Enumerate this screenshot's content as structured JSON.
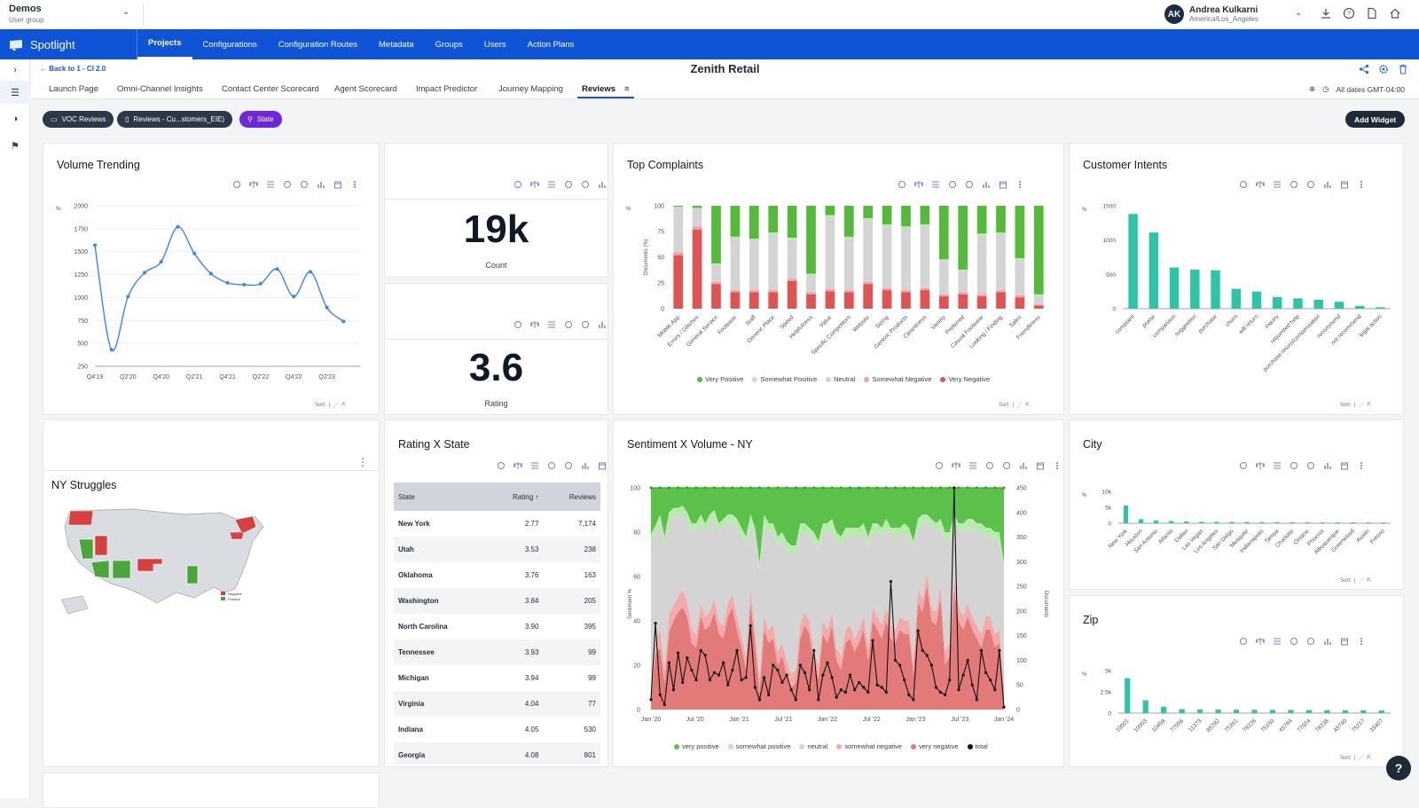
{
  "workspace": {
    "name": "Demos",
    "subtitle": "User group"
  },
  "user": {
    "initials": "AK",
    "name": "Andrea Kulkarni",
    "timezone": "America/Los_Angeles"
  },
  "brand": {
    "name": "Spotlight"
  },
  "nav": [
    "Projects",
    "Configurations",
    "Configuration Routes",
    "Metadata",
    "Groups",
    "Users",
    "Action Plans"
  ],
  "page": {
    "back": "Back to 1 - CI 2.0",
    "title": "Zenith Retail"
  },
  "tabs": [
    "Launch Page",
    "Omni-Channel Insights",
    "Contact Center Scorecard",
    "Agent Scorecard",
    "Impact Predictor",
    "Journey Mapping",
    "Reviews"
  ],
  "tab_menu": "≡",
  "dates": "All dates GMT-04:00",
  "chips": [
    "VOC Reviews",
    "Reviews - Cu...stomers_EIE)",
    "State"
  ],
  "add_widget": "Add Widget",
  "sort_label": "Sort:",
  "widgets": {
    "volume_title": "Volume Trending",
    "count_value": "19k",
    "count_label": "Count",
    "rating_value": "3.6",
    "rating_label": "Rating",
    "complaints_title": "Top Complaints",
    "intents_title": "Customer Intents",
    "map_title": "NY Struggles",
    "map_legend": [
      "Negative",
      "Positive"
    ],
    "rating_state_title": "Rating X State",
    "sentiment_title": "Sentiment X Volume - NY",
    "city_title": "City",
    "zip_title": "Zip"
  },
  "rating_table": {
    "headers": [
      "State",
      "Rating",
      "Reviews"
    ],
    "sort_arrow": "↑",
    "rows": [
      [
        "New York",
        "2.77",
        "7,174"
      ],
      [
        "Utah",
        "3.53",
        "238"
      ],
      [
        "Oklahoma",
        "3.76",
        "163"
      ],
      [
        "Washington",
        "3.84",
        "205"
      ],
      [
        "North Carolina",
        "3.90",
        "395"
      ],
      [
        "Tennessee",
        "3.93",
        "99"
      ],
      [
        "Michigan",
        "3.94",
        "99"
      ],
      [
        "Virginia",
        "4.04",
        "77"
      ],
      [
        "Indiana",
        "4.05",
        "530"
      ],
      [
        "Georgia",
        "4.08",
        "801"
      ]
    ]
  },
  "help": "?",
  "chart_data": [
    {
      "id": "volume",
      "type": "line",
      "title": "Volume Trending",
      "x": [
        "Q4'19",
        "Q1'20",
        "Q2'20",
        "Q3'20",
        "Q4'20",
        "Q1'21",
        "Q2'21",
        "Q3'21",
        "Q4'21",
        "Q1'22",
        "Q2'22",
        "Q3'22",
        "Q4'22",
        "Q1'23",
        "Q2'23",
        "Q3'23",
        "Q4'23"
      ],
      "xticks": [
        "Q4'19",
        "Q2'20",
        "Q4'20",
        "Q2'21",
        "Q4'21",
        "Q2'22",
        "Q4'22",
        "Q2'23"
      ],
      "values": [
        1570,
        430,
        1010,
        1270,
        1390,
        1770,
        1480,
        1260,
        1160,
        1140,
        1150,
        1310,
        1010,
        1280,
        890,
        740,
        null
      ],
      "ylim": [
        250,
        2000
      ],
      "yticks": [
        250,
        500,
        750,
        1000,
        1250,
        1500,
        1750,
        2000
      ],
      "ylabel": "%"
    },
    {
      "id": "complaints",
      "type": "bar",
      "stacked": true,
      "title": "Top Complaints",
      "ylabel": "Documents (%)",
      "ylim": [
        0,
        100
      ],
      "yticks": [
        0,
        25,
        50,
        75,
        100
      ],
      "categories": [
        "Mobile App",
        "Errors / Glitches",
        "General Service",
        "Footwear",
        "Staff",
        "Generic Place",
        "Speed",
        "Helpfulness",
        "Value",
        "Specific Competitors",
        "Website",
        "Sizing",
        "Generic Products",
        "Cleanliness",
        "Variety",
        "Preferred",
        "Casual Footwear",
        "Looking / Finding",
        "Sales",
        "Friendliness"
      ],
      "series": [
        {
          "name": "Very Negative",
          "color": "#e05353",
          "values": [
            52,
            77,
            24,
            16,
            16,
            16,
            27,
            14,
            17,
            16,
            24,
            18,
            16,
            18,
            12,
            14,
            12,
            16,
            11,
            3
          ]
        },
        {
          "name": "Somewhat Negative",
          "color": "#f3a3a3",
          "values": [
            3,
            3,
            2,
            2,
            2,
            2,
            2,
            2,
            2,
            2,
            2,
            2,
            2,
            2,
            2,
            2,
            2,
            2,
            2,
            1
          ]
        },
        {
          "name": "Neutral",
          "color": "#d4d4d4",
          "values": [
            43,
            17,
            16,
            50,
            48,
            54,
            38,
            16,
            70,
            50,
            60,
            60,
            60,
            60,
            32,
            20,
            57,
            54,
            34,
            8
          ]
        },
        {
          "name": "Somewhat Positive",
          "color": "#b7ecad",
          "values": [
            1,
            1,
            2,
            2,
            2,
            2,
            2,
            2,
            2,
            2,
            2,
            2,
            2,
            2,
            2,
            2,
            2,
            2,
            2,
            2
          ]
        },
        {
          "name": "Very Positive",
          "color": "#55b93c",
          "values": [
            1,
            2,
            56,
            30,
            32,
            26,
            31,
            66,
            9,
            30,
            12,
            18,
            20,
            18,
            52,
            62,
            27,
            26,
            51,
            86
          ]
        }
      ],
      "legend": [
        "Very Positive",
        "Somewhat Positive",
        "Neutral",
        "Somewhat Negative",
        "Very Negative"
      ]
    },
    {
      "id": "intents",
      "type": "bar",
      "title": "Customer Intents",
      "ylim": [
        0,
        1500
      ],
      "yticks": [
        0,
        500,
        1000,
        1500
      ],
      "categories": [
        "complaint",
        "praise",
        "comparison",
        "suggestion",
        "purchase",
        "churn",
        "will return",
        "inquiry",
        "requested help",
        "purchase return/compensation",
        "recommend",
        "not recommend",
        "legal action"
      ],
      "values": [
        1380,
        1110,
        600,
        570,
        560,
        290,
        250,
        170,
        150,
        130,
        100,
        40,
        20
      ]
    },
    {
      "id": "sentiment",
      "type": "area",
      "title": "Sentiment X Volume - NY",
      "ylabel": "Sentiment %",
      "y2label": "Documents",
      "ylim": [
        0,
        100
      ],
      "y2lim": [
        0,
        450
      ],
      "yticks": [
        0,
        20,
        40,
        60,
        80,
        100
      ],
      "y2ticks": [
        0,
        50,
        100,
        150,
        200,
        250,
        300,
        350,
        400,
        450
      ],
      "xticks": [
        "Jan '20",
        "Jul '20",
        "Jan '21",
        "Jul '21",
        "Jan '22",
        "Jul '22",
        "Jan '23",
        "Jul '23",
        "Jan '24"
      ],
      "total": [
        20,
        175,
        30,
        10,
        95,
        40,
        115,
        55,
        105,
        80,
        60,
        120,
        110,
        60,
        75,
        70,
        95,
        50,
        80,
        120,
        60,
        65,
        170,
        45,
        20,
        65,
        30,
        90,
        80,
        55,
        70,
        40,
        20,
        90,
        75,
        40,
        120,
        20,
        70,
        95,
        65,
        25,
        40,
        35,
        70,
        40,
        55,
        45,
        35,
        140,
        50,
        45,
        35,
        260,
        100,
        90,
        60,
        30,
        20,
        160,
        120,
        110,
        90,
        45,
        35,
        30,
        60,
        450,
        40,
        70,
        100,
        50,
        20,
        120,
        75,
        60,
        40,
        120,
        5
      ],
      "very_negative": [
        5,
        25,
        28,
        12,
        35,
        40,
        44,
        46,
        42,
        30,
        28,
        42,
        36,
        38,
        44,
        34,
        32,
        42,
        46,
        36,
        28,
        18,
        48,
        30,
        8,
        36,
        30,
        32,
        20,
        24,
        16,
        10,
        12,
        32,
        38,
        34,
        20,
        14,
        34,
        30,
        38,
        22,
        18,
        30,
        32,
        26,
        30,
        36,
        22,
        40,
        36,
        32,
        40,
        32,
        30,
        36,
        34,
        34,
        16,
        48,
        44,
        56,
        40,
        38,
        50,
        20,
        24,
        54,
        40,
        36,
        42,
        36,
        32,
        28,
        36,
        36,
        28,
        30,
        6
      ],
      "somewhat_negative": [
        5,
        6,
        8,
        6,
        8,
        7,
        7,
        8,
        7,
        6,
        6,
        6,
        6,
        6,
        6,
        6,
        6,
        6,
        6,
        6,
        6,
        6,
        6,
        6,
        6,
        6,
        6,
        6,
        6,
        6,
        6,
        6,
        6,
        6,
        6,
        6,
        6,
        6,
        6,
        6,
        6,
        6,
        6,
        6,
        6,
        6,
        6,
        6,
        6,
        6,
        6,
        6,
        6,
        6,
        6,
        6,
        6,
        6,
        6,
        6,
        6,
        6,
        6,
        6,
        6,
        6,
        6,
        6,
        6,
        6,
        6,
        6,
        6,
        6,
        6,
        6,
        6,
        6,
        6
      ],
      "neutral": [
        65,
        48,
        48,
        56,
        42,
        40,
        36,
        34,
        36,
        44,
        46,
        36,
        38,
        40,
        36,
        40,
        44,
        36,
        32,
        40,
        44,
        50,
        30,
        42,
        48,
        42,
        44,
        42,
        48,
        46,
        50,
        54,
        52,
        42,
        36,
        38,
        50,
        52,
        40,
        44,
        38,
        48,
        50,
        42,
        40,
        46,
        42,
        38,
        46,
        34,
        38,
        40,
        36,
        40,
        42,
        36,
        40,
        38,
        50,
        28,
        34,
        22,
        36,
        36,
        26,
        50,
        46,
        24,
        34,
        38,
        34,
        40,
        42,
        46,
        36,
        36,
        42,
        40,
        50
      ],
      "somewhat_positive": [
        4,
        4,
        4,
        4,
        4,
        4,
        4,
        4,
        4,
        4,
        4,
        4,
        4,
        4,
        4,
        4,
        4,
        4,
        4,
        4,
        4,
        4,
        4,
        4,
        4,
        4,
        4,
        4,
        4,
        4,
        4,
        4,
        4,
        4,
        4,
        4,
        4,
        4,
        4,
        4,
        4,
        4,
        4,
        4,
        4,
        4,
        4,
        4,
        4,
        4,
        4,
        4,
        4,
        4,
        4,
        4,
        4,
        4,
        4,
        4,
        4,
        4,
        4,
        4,
        4,
        4,
        4,
        4,
        4,
        4,
        4,
        4,
        4,
        4,
        4,
        4,
        4,
        4,
        4
      ],
      "legend": [
        "very positive",
        "somewhat positive",
        "neutral",
        "somewhat negative",
        "very negative",
        "total"
      ]
    },
    {
      "id": "city",
      "type": "bar",
      "title": "City",
      "ylim": [
        0,
        10000
      ],
      "yticks": [
        "0",
        "5k",
        "10k"
      ],
      "categories": [
        "New York",
        "Houston",
        "San Antonio",
        "Atlanta",
        "Dallas",
        "Las Vegas",
        "Los Angeles",
        "San Diego",
        "Mesquite",
        "Indianapolis",
        "Tampa",
        "Charlotte",
        "Ontario",
        "Phoenix",
        "Albuquerque",
        "Greenwood",
        "Austin",
        "Fresno"
      ],
      "values": [
        5600,
        1300,
        900,
        700,
        600,
        500,
        450,
        420,
        400,
        380,
        350,
        330,
        320,
        300,
        290,
        280,
        260,
        250
      ]
    },
    {
      "id": "zip",
      "type": "bar",
      "title": "Zip",
      "ylim": [
        0,
        5000
      ],
      "yticks": [
        "0",
        "2.5k",
        "5k"
      ],
      "categories": [
        "10001",
        "10003",
        "10458",
        "77056",
        "11373",
        "85282",
        "75261",
        "78226",
        "75150",
        "45764",
        "77024",
        "78238",
        "45740",
        "75217",
        "33407"
      ],
      "values": [
        4100,
        1500,
        750,
        480,
        440,
        420,
        400,
        390,
        380,
        370,
        360,
        350,
        340,
        330,
        320
      ]
    }
  ]
}
